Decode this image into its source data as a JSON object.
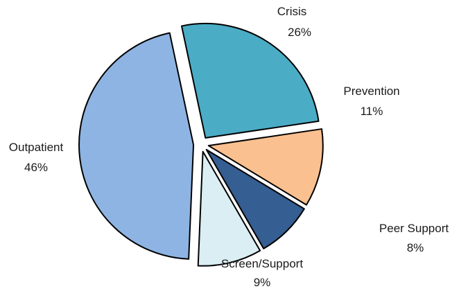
{
  "chart_data": {
    "type": "pie",
    "exploded": true,
    "slices": [
      {
        "label": "Crisis",
        "value": 26,
        "percent_label": "26%",
        "color": "#4BACC6"
      },
      {
        "label": "Prevention",
        "value": 11,
        "percent_label": "11%",
        "color": "#FAC090"
      },
      {
        "label": "Peer Support",
        "value": 8,
        "percent_label": "8%",
        "color": "#355E92"
      },
      {
        "label": "Screen/Support",
        "value": 9,
        "percent_label": "9%",
        "color": "#DAEEF3"
      },
      {
        "label": "Outpatient",
        "value": 46,
        "percent_label": "46%",
        "color": "#8EB4E3"
      }
    ],
    "edge_color": "#000000"
  }
}
